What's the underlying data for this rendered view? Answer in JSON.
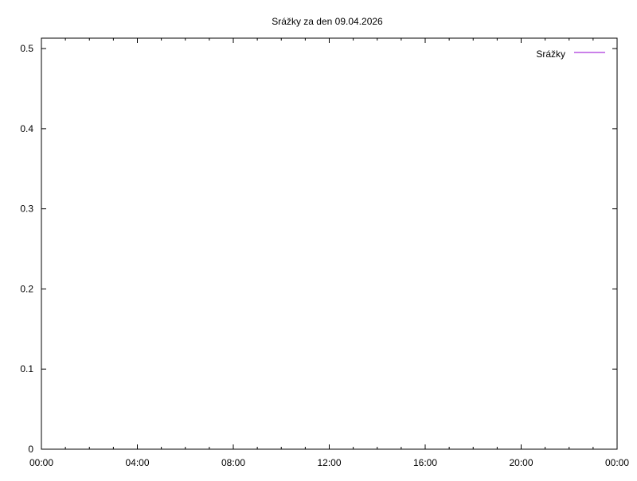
{
  "chart_data": {
    "type": "line",
    "title": "Srážky za den 09.04.2026",
    "xlabel": "",
    "ylabel": "",
    "x_ticks": [
      "00:00",
      "04:00",
      "08:00",
      "12:00",
      "16:00",
      "20:00",
      "00:00"
    ],
    "x_range_hours": [
      0,
      24
    ],
    "x_minor_tick_hours": 1,
    "y_ticks": [
      "0",
      "0.1",
      "0.2",
      "0.3",
      "0.4",
      "0.5"
    ],
    "y_tick_values": [
      0,
      0.1,
      0.2,
      0.3,
      0.4,
      0.5
    ],
    "ylim": [
      0,
      0.513
    ],
    "grid": false,
    "legend_position": "top-right",
    "series": [
      {
        "name": "Srážky",
        "color": "#9400d3",
        "x": [],
        "y": []
      }
    ]
  }
}
